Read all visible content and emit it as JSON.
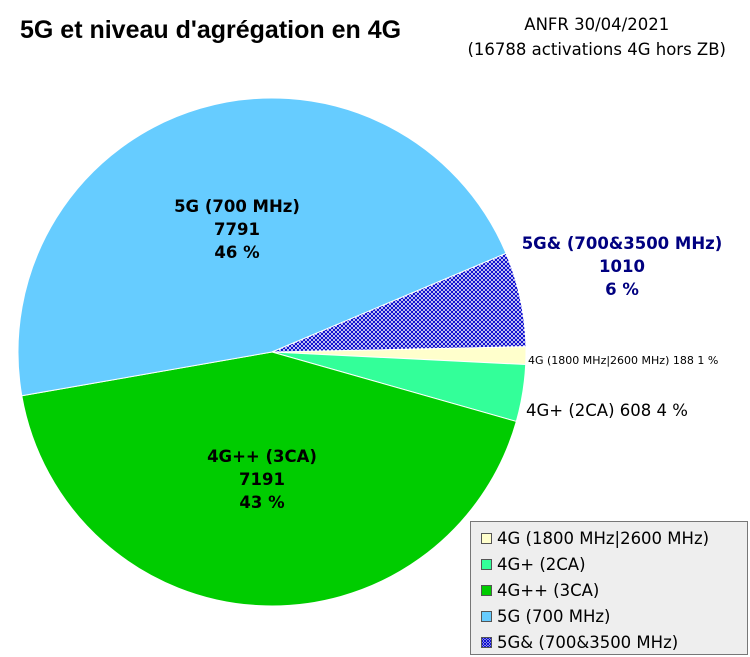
{
  "title": "5G et niveau d'agrégation en 4G",
  "source": {
    "line1": "ANFR 30/04/2021",
    "line2": "(16788 activations 4G hors ZB)"
  },
  "chart_data": {
    "type": "pie",
    "title": "5G et niveau d'agrégation en 4G",
    "slices": [
      {
        "label": "4G (1800 MHz|2600 MHz)",
        "value": 188,
        "percent": "1 %",
        "color": "#ffffcc",
        "pattern": false,
        "label_lines": [
          "4G (1800 MHz|2600 MHz) 188 1 %"
        ]
      },
      {
        "label": "4G+ (2CA)",
        "value": 608,
        "percent": "4 %",
        "color": "#33ff99",
        "pattern": false,
        "label_lines": [
          "4G+ (2CA) 608 4 %"
        ]
      },
      {
        "label": "4G++ (3CA)",
        "value": 7191,
        "percent": "43 %",
        "color": "#00cc00",
        "pattern": false,
        "label_lines": [
          "4G++ (3CA)",
          "7191",
          "43 %"
        ]
      },
      {
        "label": "5G (700 MHz)",
        "value": 7791,
        "percent": "46 %",
        "color": "#66ccff",
        "pattern": false,
        "label_lines": [
          "5G (700 MHz)",
          "7791",
          "46 %"
        ]
      },
      {
        "label": "5G& (700&3500 MHz)",
        "value": 1010,
        "percent": "6 %",
        "color": "#0000cc",
        "pattern": true,
        "label_lines": [
          "5G& (700&3500 MHz)",
          "1010",
          "6 %"
        ]
      }
    ],
    "legend_position": "bottom-right",
    "label_color_highlight": "#000080"
  },
  "legend": [
    {
      "label": "4G (1800 MHz|2600 MHz)"
    },
    {
      "label": "4G+ (2CA)"
    },
    {
      "label": "4G++ (3CA)"
    },
    {
      "label": "5G (700 MHz)"
    },
    {
      "label": "5G& (700&3500 MHz)"
    }
  ]
}
